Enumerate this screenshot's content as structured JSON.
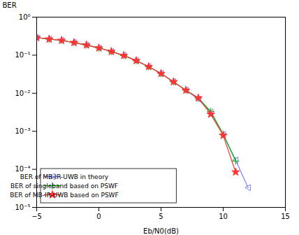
{
  "chart_data": {
    "type": "line",
    "xlabel": "Eb/N0(dB)",
    "ylabel": "BER",
    "log": "y",
    "grid": false,
    "legend": "lower left",
    "xlim": [
      -5,
      15
    ],
    "ylim": [
      1e-05,
      1
    ],
    "xticks": [
      -5,
      0,
      5,
      10,
      15
    ],
    "yticks": [
      {
        "value": 1e-05,
        "label": "10⁻⁵"
      },
      {
        "value": 0.0001,
        "label": "10⁻⁴"
      },
      {
        "value": 0.001,
        "label": "10⁻³"
      },
      {
        "value": 0.01,
        "label": "10⁻²"
      },
      {
        "value": 0.1,
        "label": "10⁻¹"
      },
      {
        "value": 1,
        "label": "10⁰"
      }
    ],
    "series": [
      {
        "name": "BER of MB-IR-UWB in theory",
        "color": "#7B7BFF",
        "marker": "triangle-left",
        "x": [
          -5,
          -4,
          -3,
          -2,
          -1,
          0,
          1,
          2,
          3,
          4,
          5,
          6,
          7,
          8,
          9,
          10,
          11,
          12
        ],
        "values": [
          0.29,
          0.265,
          0.245,
          0.215,
          0.185,
          0.155,
          0.125,
          0.098,
          0.072,
          0.05,
          0.033,
          0.02,
          0.012,
          0.007,
          0.0032,
          0.00083,
          0.000175,
          3.3e-05
        ]
      },
      {
        "name": "BER of singleband based on PSWF",
        "color": "#00BB00",
        "marker": "plus",
        "x": [
          -5,
          -4,
          -3,
          -2,
          -1,
          0,
          1,
          2,
          3,
          4,
          5,
          6,
          7,
          8,
          9,
          10,
          11
        ],
        "values": [
          0.29,
          0.265,
          0.245,
          0.215,
          0.185,
          0.155,
          0.125,
          0.098,
          0.072,
          0.05,
          0.033,
          0.02,
          0.012,
          0.0075,
          0.0033,
          0.00083,
          0.000165
        ]
      },
      {
        "name": "BER of MB-IR-UWB based on PSWF",
        "color": "#FF3333",
        "marker": "star",
        "x": [
          -5,
          -4,
          -3,
          -2,
          -1,
          0,
          1,
          2,
          3,
          4,
          5,
          6,
          7,
          8,
          9,
          10,
          11
        ],
        "values": [
          0.29,
          0.265,
          0.245,
          0.215,
          0.185,
          0.155,
          0.125,
          0.098,
          0.072,
          0.05,
          0.033,
          0.02,
          0.012,
          0.0075,
          0.0028,
          0.00078,
          8.5e-05
        ]
      }
    ]
  }
}
